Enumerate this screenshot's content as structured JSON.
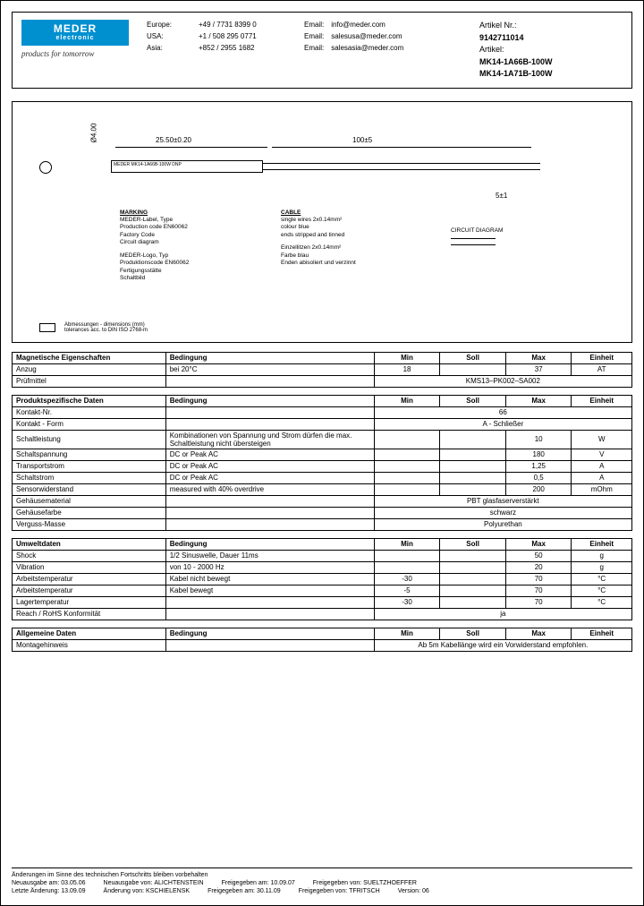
{
  "logo": {
    "main": "MEDER",
    "sub": "electronic"
  },
  "tagline": "products for tomorrow",
  "contacts": [
    {
      "region": "Europe:",
      "phone": "+49 / 7731 8399 0",
      "email_label": "Email:",
      "email": "info@meder.com"
    },
    {
      "region": "USA:",
      "phone": "+1 / 508 295 0771",
      "email_label": "Email:",
      "email": "salesusa@meder.com"
    },
    {
      "region": "Asia:",
      "phone": "+852 / 2955 1682",
      "email_label": "Email:",
      "email": "salesasia@meder.com"
    }
  ],
  "artikel": {
    "nr_label": "Artikel Nr.:",
    "nr": "9142711014",
    "art_label": "Artikel:",
    "art1": "MK14-1A66B-100W",
    "art2": "MK14-1A71B-100W"
  },
  "diagram": {
    "dia": "Ø4.00",
    "dim1": "25.50±0.20",
    "dim2": "100±5",
    "dim3": "5±1",
    "body_text": "MEDER MK14-1A66B-100W DNP",
    "marking_h": "MARKING",
    "marking_en": "MEDER-Label, Type\nProduction code EN60062\nFactory Code\nCircuit diagram",
    "marking_de": "MEDER-Logo, Typ\nProduktionscode EN60062\nFertigungsstätte\nSchaltbild",
    "cable_h": "CABLE",
    "cable_en": "single wires 2x0.14mm²\ncolour blue\nends stripped and tinned",
    "cable_de": "Einzellitzen 2x0.14mm²\nFarbe blau\nEnden abisoliert und verzinnt",
    "circuit_h": "CIRCUIT DIAGRAM",
    "tolerance": "Abmessungen - dimensions (mm)\ntolerances acc. to DIN ISO 2768-m"
  },
  "tables": {
    "mag": {
      "title": "Magnetische Eigenschaften",
      "headers": [
        "Bedingung",
        "Min",
        "Soll",
        "Max",
        "Einheit"
      ],
      "rows": [
        {
          "prop": "Anzug",
          "cond": "bei 20°C",
          "min": "18",
          "soll": "",
          "max": "37",
          "unit": "AT"
        },
        {
          "prop": "Prüfmittel",
          "span": "KMS13–PK002–SA002"
        }
      ]
    },
    "prod": {
      "title": "Produktspezifische Daten",
      "headers": [
        "Bedingung",
        "Min",
        "Soll",
        "Max",
        "Einheit"
      ],
      "rows": [
        {
          "prop": "Kontakt-Nr.",
          "span": "66"
        },
        {
          "prop": "Kontakt - Form",
          "span": "A - Schließer"
        },
        {
          "prop": "Schaltleistung",
          "cond": "Kombinationen von Spannung und Strom dürfen die max. Schaltleistung nicht übersteigen",
          "min": "",
          "soll": "",
          "max": "10",
          "unit": "W"
        },
        {
          "prop": "Schaltspannung",
          "cond": "DC or Peak AC",
          "min": "",
          "soll": "",
          "max": "180",
          "unit": "V"
        },
        {
          "prop": "Transportstrom",
          "cond": "DC or Peak AC",
          "min": "",
          "soll": "",
          "max": "1,25",
          "unit": "A"
        },
        {
          "prop": "Schaltstrom",
          "cond": "DC or Peak AC",
          "min": "",
          "soll": "",
          "max": "0,5",
          "unit": "A"
        },
        {
          "prop": "Sensorwiderstand",
          "cond": "measured with 40% overdrive",
          "min": "",
          "soll": "",
          "max": "200",
          "unit": "mOhm"
        },
        {
          "prop": "Gehäusematerial",
          "span": "PBT glasfaserverstärkt"
        },
        {
          "prop": "Gehäusefarbe",
          "span": "schwarz"
        },
        {
          "prop": "Verguss-Masse",
          "span": "Polyurethan"
        }
      ]
    },
    "env": {
      "title": "Umweltdaten",
      "headers": [
        "Bedingung",
        "Min",
        "Soll",
        "Max",
        "Einheit"
      ],
      "rows": [
        {
          "prop": "Shock",
          "cond": "1/2 Sinuswelle, Dauer 11ms",
          "min": "",
          "soll": "",
          "max": "50",
          "unit": "g"
        },
        {
          "prop": "Vibration",
          "cond": "von 10 - 2000 Hz",
          "min": "",
          "soll": "",
          "max": "20",
          "unit": "g"
        },
        {
          "prop": "Arbeitstemperatur",
          "cond": "Kabel nicht bewegt",
          "min": "-30",
          "soll": "",
          "max": "70",
          "unit": "°C"
        },
        {
          "prop": "Arbeitstemperatur",
          "cond": "Kabel bewegt",
          "min": "-5",
          "soll": "",
          "max": "70",
          "unit": "°C"
        },
        {
          "prop": "Lagertemperatur",
          "cond": "",
          "min": "-30",
          "soll": "",
          "max": "70",
          "unit": "°C"
        },
        {
          "prop": "Reach / RoHS Konformität",
          "span": "ja"
        }
      ]
    },
    "gen": {
      "title": "Allgemeine Daten",
      "headers": [
        "Bedingung",
        "Min",
        "Soll",
        "Max",
        "Einheit"
      ],
      "rows": [
        {
          "prop": "Montagehinweis",
          "span": "Ab 5m Kabellänge wird ein Vorwiderstand empfohlen."
        }
      ]
    }
  },
  "footer": {
    "note": "Änderungen im Sinne des technischen Fortschritts bleiben vorbehalten",
    "neu_am_l": "Neuausgabe am:",
    "neu_am": "03.05.06",
    "neu_von_l": "Neuausgabe von:",
    "neu_von": "ALICHTENSTEIN",
    "frei_am_l": "Freigegeben am:",
    "frei_am": "10.09.07",
    "frei_von_l": "Freigegeben von:",
    "frei_von": "SUELTZHOEFFER",
    "letzt_l": "Letzte Änderung:",
    "letzt": "13.09.09",
    "aend_l": "Änderung von:",
    "aend": "KSCHIELENSK",
    "frei2_am_l": "Freigegeben am:",
    "frei2_am": "30.11.09",
    "frei2_von_l": "Freigegeben von:",
    "frei2_von": "TFRITSCH",
    "ver_l": "Version:",
    "ver": "06"
  }
}
